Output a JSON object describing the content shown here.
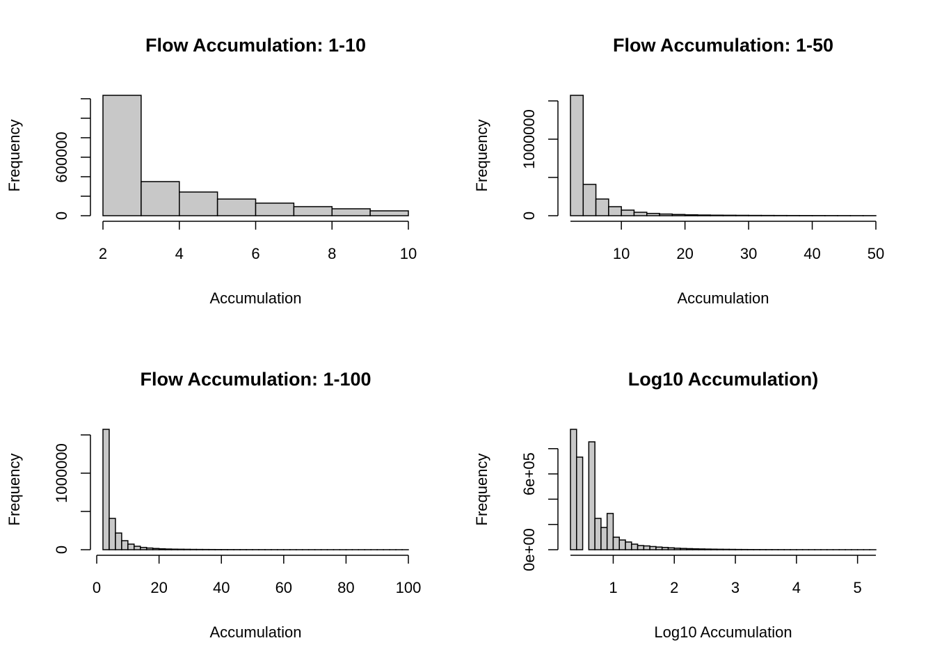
{
  "chart_data": [
    {
      "type": "histogram",
      "title": "Flow Accumulation: 1-10",
      "xlabel": "Accumulation",
      "ylabel": "Frequency",
      "color": "#c8c8c8",
      "bins": [
        2,
        3,
        4,
        5,
        6,
        7,
        8,
        9,
        10
      ],
      "values": [
        1235000,
        350000,
        243000,
        171000,
        129000,
        93000,
        71000,
        50000
      ],
      "xlim": [
        2,
        10
      ],
      "xticks": [
        2,
        4,
        6,
        8,
        10
      ],
      "ylim": [
        0,
        1235000
      ],
      "yticks": [
        0,
        600000
      ],
      "yminorticks": [
        200000,
        400000,
        800000,
        1000000,
        1200000
      ]
    },
    {
      "type": "histogram",
      "title": "Flow Accumulation: 1-50",
      "xlabel": "Accumulation",
      "ylabel": "Frequency",
      "color": "#c8c8c8",
      "bins": [
        2,
        4,
        6,
        8,
        10,
        12,
        14,
        16,
        18,
        20,
        22,
        24,
        26,
        28,
        30,
        32,
        34,
        36,
        38,
        40,
        42,
        44,
        46,
        48,
        50
      ],
      "values": [
        1573000,
        409000,
        218000,
        118000,
        73000,
        45000,
        30000,
        22000,
        16000,
        12000,
        9000,
        7000,
        6000,
        5000,
        4000,
        3500,
        3000,
        2600,
        2200,
        1900,
        1600,
        1400,
        1200,
        1000
      ],
      "xlim": [
        2,
        50
      ],
      "xticks": [
        10,
        20,
        30,
        40,
        50
      ],
      "ylim": [
        0,
        1573000
      ],
      "yticks": [
        0,
        1000000
      ],
      "yminorticks": [
        500000,
        1500000
      ]
    },
    {
      "type": "histogram",
      "title": "Flow Accumulation: 1-100",
      "xlabel": "Accumulation",
      "ylabel": "Frequency",
      "color": "#c8c8c8",
      "bins": [
        2,
        4,
        6,
        8,
        10,
        12,
        14,
        16,
        18,
        20,
        22,
        24,
        26,
        28,
        30,
        32,
        34,
        36,
        38,
        40,
        42,
        44,
        46,
        48,
        50,
        52,
        54,
        56,
        58,
        60,
        62,
        64,
        66,
        68,
        70,
        72,
        74,
        76,
        78,
        80,
        82,
        84,
        86,
        88,
        90,
        92,
        94,
        96,
        98,
        100
      ],
      "values": [
        1573000,
        409000,
        218000,
        118000,
        73000,
        45000,
        30000,
        22000,
        16000,
        12000,
        9000,
        7000,
        6000,
        5000,
        4000,
        3500,
        3000,
        2600,
        2200,
        1900,
        1600,
        1400,
        1200,
        1000,
        900,
        800,
        700,
        620,
        550,
        490,
        440,
        390,
        350,
        310,
        280,
        250,
        220,
        200,
        180,
        160,
        140,
        125,
        110,
        100,
        90,
        80,
        70,
        60,
        50
      ],
      "xlim": [
        2,
        100
      ],
      "xticks": [
        0,
        20,
        40,
        60,
        80,
        100
      ],
      "ylim": [
        0,
        1573000
      ],
      "yticks": [
        0,
        1000000
      ],
      "yminorticks": [
        500000,
        1500000
      ]
    },
    {
      "type": "histogram",
      "title": "Log10 Accumulation)",
      "xlabel": "Log10 Accumulation",
      "ylabel": "Frequency",
      "color": "#c8c8c8",
      "bins": [
        0.3,
        0.4,
        0.5,
        0.6,
        0.7,
        0.8,
        0.9,
        1.0,
        1.1,
        1.2,
        1.3,
        1.4,
        1.5,
        1.6,
        1.7,
        1.8,
        1.9,
        2.0,
        2.1,
        2.2,
        2.3,
        2.4,
        2.5,
        2.6,
        2.7,
        2.8,
        2.9,
        3.0,
        3.1,
        3.2,
        3.3,
        3.4,
        3.5,
        3.6,
        3.7,
        3.8,
        3.9,
        4.0,
        4.1,
        4.2,
        4.3,
        4.4,
        4.5,
        4.6,
        4.7,
        4.8,
        4.9,
        5.0,
        5.1,
        5.2,
        5.3
      ],
      "values": [
        953000,
        733000,
        0,
        854000,
        248000,
        176000,
        287000,
        99000,
        77000,
        61000,
        44000,
        33000,
        30000,
        25000,
        21000,
        18000,
        15000,
        12000,
        10000,
        8500,
        7000,
        6000,
        5000,
        4200,
        3500,
        3000,
        2500,
        2000,
        1700,
        1400,
        1200,
        1000,
        850,
        700,
        600,
        500,
        420,
        350,
        300,
        250,
        200,
        170,
        140,
        120,
        100,
        80,
        60,
        50,
        40,
        30
      ],
      "xlim": [
        0.3,
        5.3
      ],
      "xticks": [
        1,
        2,
        3,
        4,
        5
      ],
      "ylim": [
        0,
        953000
      ],
      "yticks": [
        {
          "value": 0,
          "label": "0e+00"
        },
        {
          "value": 600000,
          "label": "6e+05"
        }
      ],
      "yminorticks": [
        200000,
        400000,
        800000
      ]
    }
  ]
}
